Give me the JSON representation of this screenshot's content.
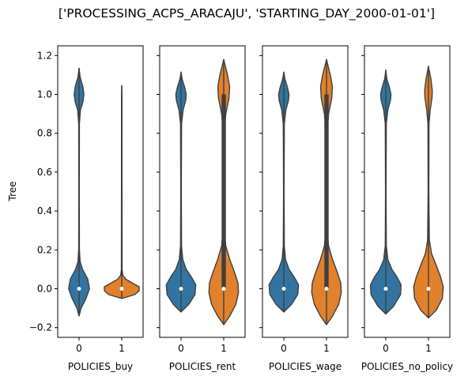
{
  "chart_data": {
    "type": "violin",
    "title": "['PROCESSING_ACPS_ARACAJU', 'STARTING_DAY_2000-01-01']",
    "ylabel": "Tree",
    "ylim": [
      -0.25,
      1.25
    ],
    "yticks": [
      -0.2,
      0.0,
      0.2,
      0.4,
      0.6,
      0.8,
      1.0,
      1.2
    ],
    "ytick_labels": [
      "−0.2",
      "0.0",
      "0.2",
      "0.4",
      "0.6",
      "0.8",
      "1.0",
      "1.2"
    ],
    "grid": false,
    "colors": {
      "0": "#3274a1",
      "1": "#e1812c",
      "line": "#3f3f3f",
      "spine": "#000000"
    },
    "panels": [
      {
        "xlabel": "POLICIES_buy",
        "categories": [
          "0",
          "1"
        ],
        "violins": [
          {
            "category": "0",
            "min": -0.14,
            "max": 1.135,
            "median": 0.0,
            "q1": 0.0,
            "q3": 0.0,
            "profile": [
              [
                -0.14,
                0.0
              ],
              [
                -0.1,
                0.12
              ],
              [
                -0.05,
                0.4
              ],
              [
                0.0,
                0.6
              ],
              [
                0.05,
                0.5
              ],
              [
                0.1,
                0.2
              ],
              [
                0.14,
                0.06
              ],
              [
                0.2,
                0.02
              ],
              [
                0.5,
                0.012
              ],
              [
                0.85,
                0.02
              ],
              [
                0.92,
                0.08
              ],
              [
                0.96,
                0.22
              ],
              [
                1.0,
                0.28
              ],
              [
                1.04,
                0.22
              ],
              [
                1.09,
                0.06
              ],
              [
                1.135,
                0.0
              ]
            ]
          },
          {
            "category": "1",
            "min": -0.05,
            "max": 1.045,
            "median": 0.0,
            "q1": 0.0,
            "q3": 0.0,
            "profile": [
              [
                -0.05,
                0.0
              ],
              [
                -0.03,
                0.75
              ],
              [
                -0.01,
                1.0
              ],
              [
                0.01,
                1.0
              ],
              [
                0.03,
                0.6
              ],
              [
                0.05,
                0.22
              ],
              [
                0.07,
                0.06
              ],
              [
                0.1,
                0.02
              ],
              [
                0.5,
                0.015
              ],
              [
                1.0,
                0.012
              ],
              [
                1.045,
                0.0
              ]
            ]
          }
        ]
      },
      {
        "xlabel": "POLICIES_rent",
        "categories": [
          "0",
          "1"
        ],
        "violins": [
          {
            "category": "0",
            "min": -0.12,
            "max": 1.115,
            "median": 0.0,
            "q1": 0.0,
            "q3": 0.0,
            "profile": [
              [
                -0.12,
                0.0
              ],
              [
                -0.08,
                0.45
              ],
              [
                -0.03,
                0.8
              ],
              [
                0.02,
                0.85
              ],
              [
                0.06,
                0.6
              ],
              [
                0.1,
                0.3
              ],
              [
                0.15,
                0.1
              ],
              [
                0.22,
                0.03
              ],
              [
                0.5,
                0.015
              ],
              [
                0.85,
                0.03
              ],
              [
                0.92,
                0.12
              ],
              [
                0.97,
                0.27
              ],
              [
                1.0,
                0.3
              ],
              [
                1.04,
                0.2
              ],
              [
                1.08,
                0.06
              ],
              [
                1.115,
                0.0
              ]
            ]
          },
          {
            "category": "1",
            "min": -0.185,
            "max": 1.18,
            "median": 0.0,
            "q1": 0.0,
            "q3": 1.0,
            "profile": [
              [
                -0.185,
                0.0
              ],
              [
                -0.14,
                0.35
              ],
              [
                -0.08,
                0.7
              ],
              [
                -0.02,
                0.85
              ],
              [
                0.03,
                0.82
              ],
              [
                0.09,
                0.6
              ],
              [
                0.15,
                0.35
              ],
              [
                0.22,
                0.12
              ],
              [
                0.3,
                0.04
              ],
              [
                0.5,
                0.02
              ],
              [
                0.8,
                0.03
              ],
              [
                0.9,
                0.12
              ],
              [
                0.98,
                0.3
              ],
              [
                1.04,
                0.34
              ],
              [
                1.1,
                0.22
              ],
              [
                1.15,
                0.08
              ],
              [
                1.18,
                0.0
              ]
            ]
          }
        ]
      },
      {
        "xlabel": "POLICIES_wage",
        "categories": [
          "0",
          "1"
        ],
        "violins": [
          {
            "category": "0",
            "min": -0.12,
            "max": 1.115,
            "median": 0.0,
            "q1": 0.0,
            "q3": 0.0,
            "profile": [
              [
                -0.12,
                0.0
              ],
              [
                -0.08,
                0.45
              ],
              [
                -0.03,
                0.8
              ],
              [
                0.02,
                0.85
              ],
              [
                0.06,
                0.6
              ],
              [
                0.1,
                0.3
              ],
              [
                0.15,
                0.1
              ],
              [
                0.22,
                0.03
              ],
              [
                0.5,
                0.015
              ],
              [
                0.85,
                0.03
              ],
              [
                0.92,
                0.12
              ],
              [
                0.97,
                0.27
              ],
              [
                1.0,
                0.3
              ],
              [
                1.04,
                0.2
              ],
              [
                1.08,
                0.06
              ],
              [
                1.115,
                0.0
              ]
            ]
          },
          {
            "category": "1",
            "min": -0.185,
            "max": 1.18,
            "median": 0.0,
            "q1": 0.0,
            "q3": 1.0,
            "profile": [
              [
                -0.185,
                0.0
              ],
              [
                -0.14,
                0.35
              ],
              [
                -0.08,
                0.7
              ],
              [
                -0.02,
                0.85
              ],
              [
                0.03,
                0.82
              ],
              [
                0.09,
                0.6
              ],
              [
                0.15,
                0.35
              ],
              [
                0.22,
                0.12
              ],
              [
                0.3,
                0.04
              ],
              [
                0.5,
                0.02
              ],
              [
                0.8,
                0.03
              ],
              [
                0.9,
                0.12
              ],
              [
                0.98,
                0.3
              ],
              [
                1.04,
                0.34
              ],
              [
                1.1,
                0.22
              ],
              [
                1.15,
                0.08
              ],
              [
                1.18,
                0.0
              ]
            ]
          }
        ]
      },
      {
        "xlabel": "POLICIES_no_policy",
        "categories": [
          "0",
          "1"
        ],
        "violins": [
          {
            "category": "0",
            "min": -0.13,
            "max": 1.125,
            "median": 0.0,
            "q1": 0.0,
            "q3": 0.0,
            "profile": [
              [
                -0.13,
                0.0
              ],
              [
                -0.09,
                0.45
              ],
              [
                -0.03,
                0.85
              ],
              [
                0.02,
                0.88
              ],
              [
                0.06,
                0.65
              ],
              [
                0.1,
                0.35
              ],
              [
                0.15,
                0.12
              ],
              [
                0.22,
                0.03
              ],
              [
                0.5,
                0.015
              ],
              [
                0.85,
                0.03
              ],
              [
                0.92,
                0.12
              ],
              [
                0.97,
                0.27
              ],
              [
                1.0,
                0.3
              ],
              [
                1.04,
                0.2
              ],
              [
                1.08,
                0.06
              ],
              [
                1.125,
                0.0
              ]
            ]
          },
          {
            "category": "1",
            "min": -0.15,
            "max": 1.145,
            "median": 0.0,
            "q1": 0.0,
            "q3": 0.0,
            "profile": [
              [
                -0.15,
                0.0
              ],
              [
                -0.11,
                0.45
              ],
              [
                -0.05,
                0.8
              ],
              [
                0.01,
                0.85
              ],
              [
                0.06,
                0.7
              ],
              [
                0.12,
                0.45
              ],
              [
                0.18,
                0.18
              ],
              [
                0.25,
                0.05
              ],
              [
                0.5,
                0.02
              ],
              [
                0.85,
                0.03
              ],
              [
                0.92,
                0.1
              ],
              [
                0.98,
                0.2
              ],
              [
                1.02,
                0.22
              ],
              [
                1.08,
                0.14
              ],
              [
                1.12,
                0.05
              ],
              [
                1.145,
                0.0
              ]
            ]
          }
        ]
      }
    ]
  }
}
